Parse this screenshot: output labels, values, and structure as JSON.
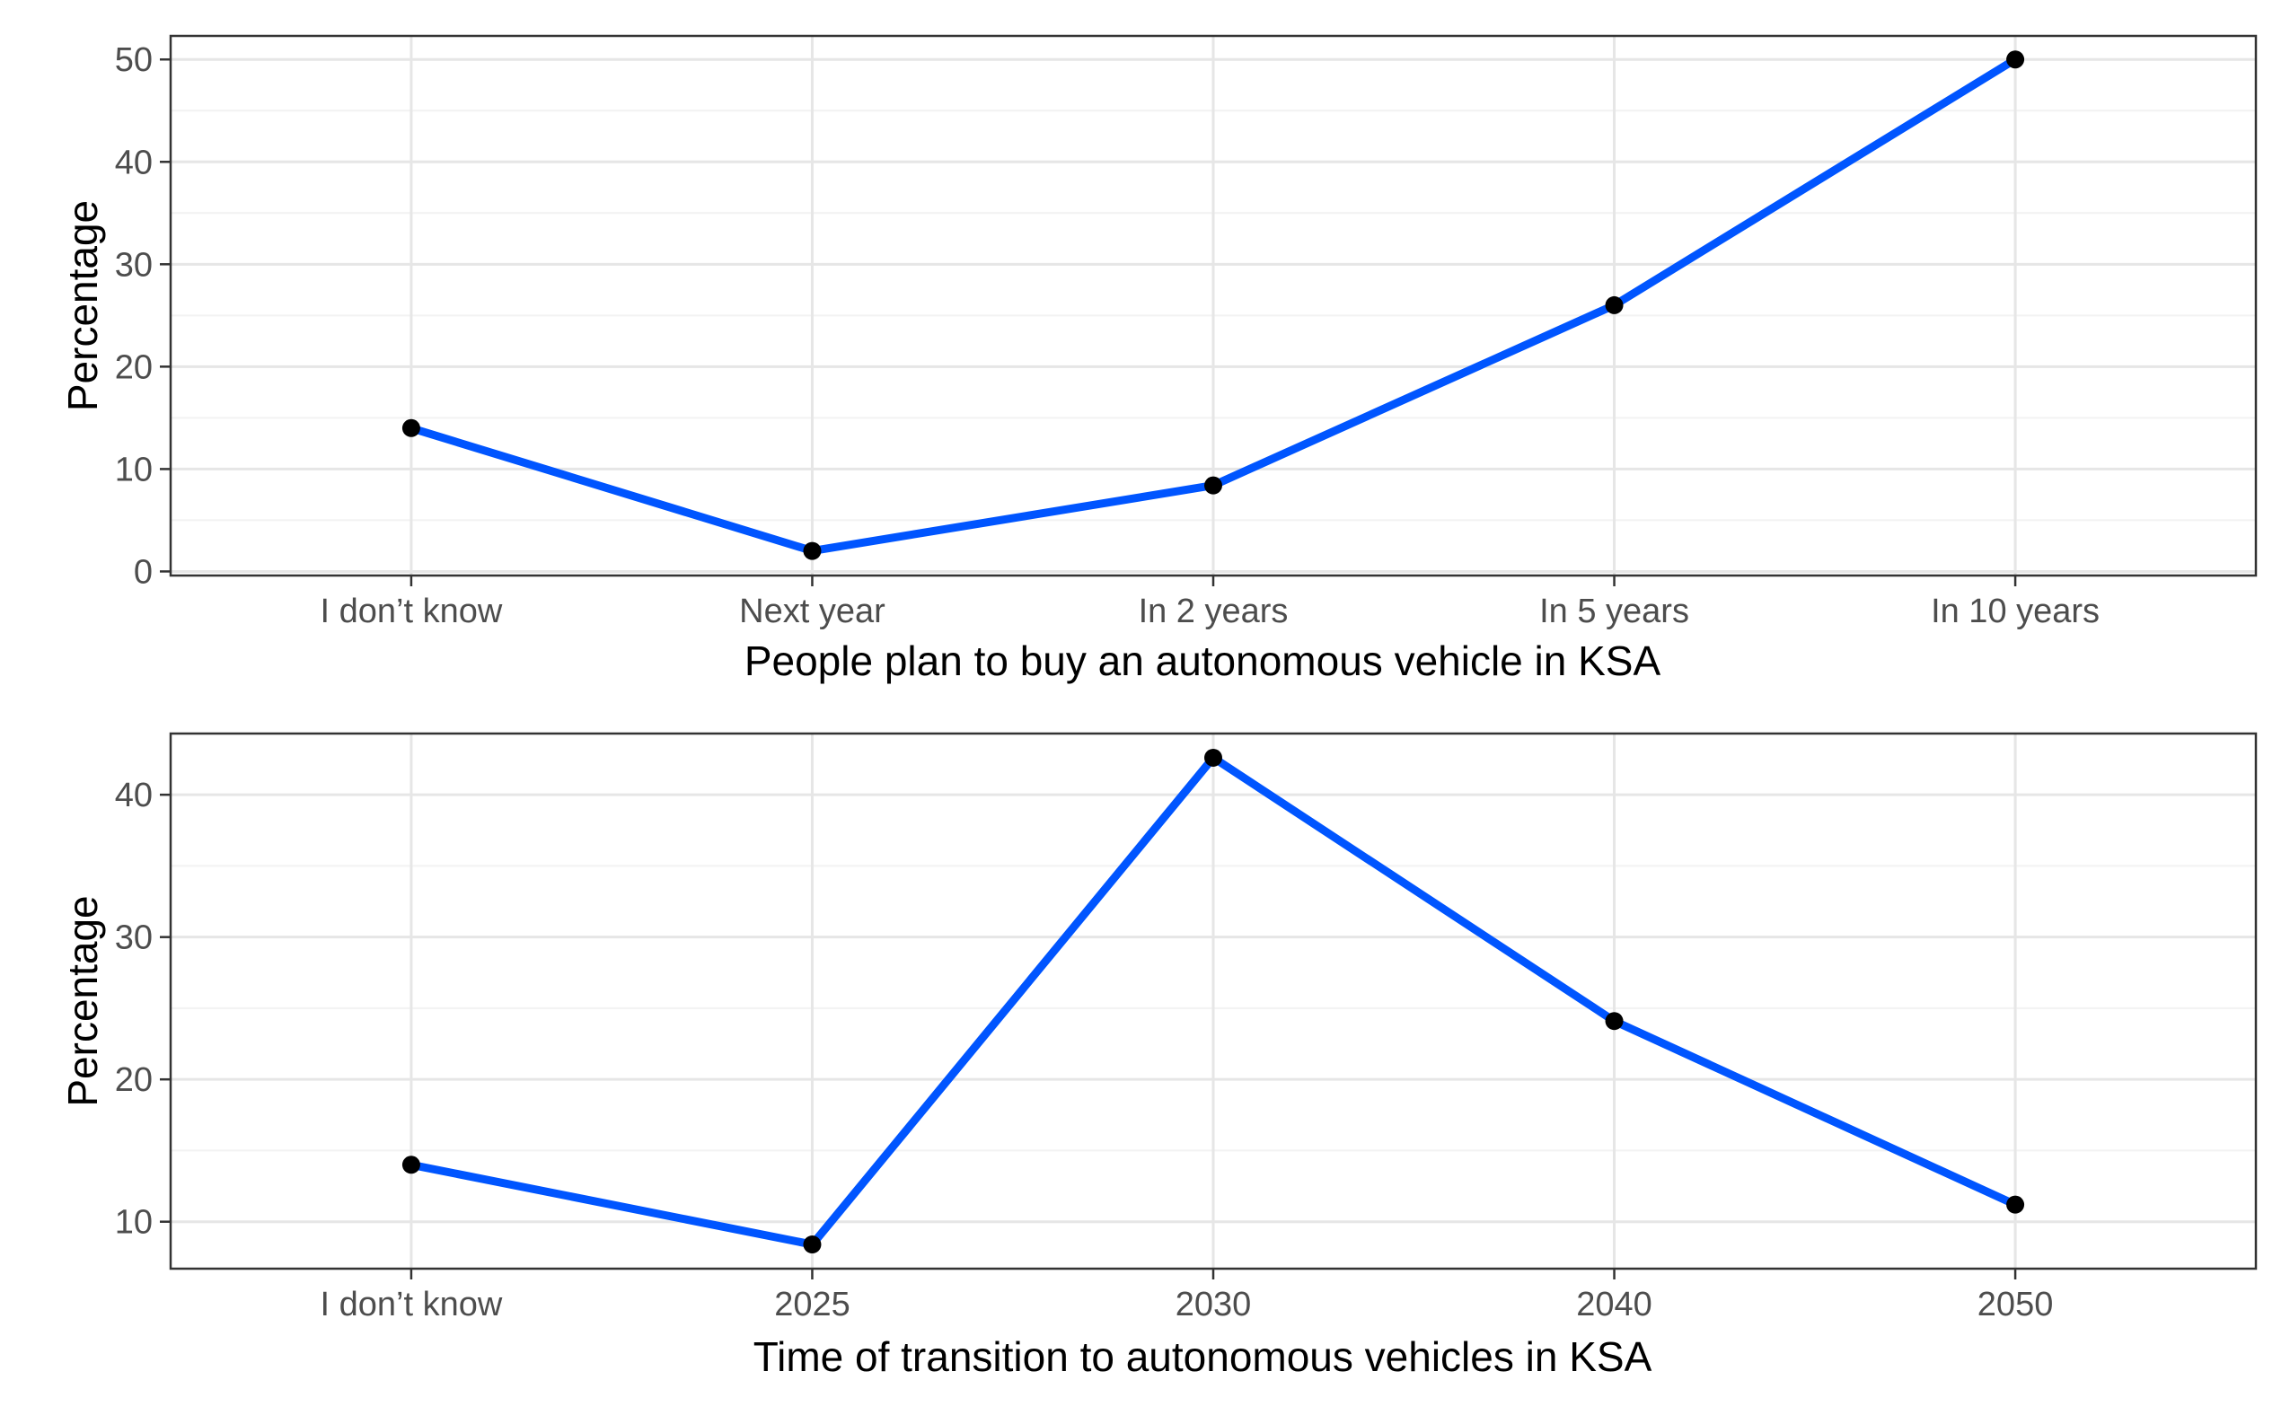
{
  "chart_data": [
    {
      "type": "line",
      "categories": [
        "I don’t know",
        "Next year",
        "In 2 years",
        "In 5 years",
        "In 10 years"
      ],
      "values": [
        14,
        2,
        8.4,
        26,
        50
      ],
      "xlabel": "People plan to buy an autonomous vehicle in KSA",
      "ylabel": "Percentage",
      "yticks": [
        0,
        10,
        20,
        30,
        40,
        50
      ],
      "ylim": [
        -0.4,
        52.3
      ],
      "grid": true,
      "line_color": "#0055ff",
      "point_color": "#000000"
    },
    {
      "type": "line",
      "categories": [
        "I don’t know",
        "2025",
        "2030",
        "2040",
        "2050"
      ],
      "values": [
        14,
        8.4,
        42.6,
        24.1,
        11.2
      ],
      "xlabel": "Time of transition to autonomous vehicles in KSA",
      "ylabel": "Percentage",
      "yticks": [
        10,
        20,
        30,
        40
      ],
      "ylim": [
        6.7,
        44.3
      ],
      "grid": true,
      "line_color": "#0055ff",
      "point_color": "#000000"
    }
  ]
}
